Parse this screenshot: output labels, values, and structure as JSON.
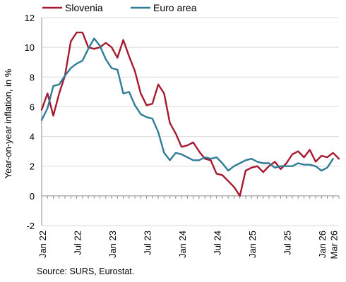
{
  "chart_data": {
    "type": "line",
    "ylabel": "Year-on-year inflation, in %",
    "ylim": [
      -2,
      12
    ],
    "yticks": [
      -2,
      0,
      2,
      4,
      6,
      8,
      10,
      12
    ],
    "x_start": "2022-01",
    "x_end": "2026-03",
    "xtick_labels": [
      {
        "date": "2022-01",
        "label": "Jan 22"
      },
      {
        "date": "2022-07",
        "label": "Jul 22"
      },
      {
        "date": "2023-01",
        "label": "Jan 23"
      },
      {
        "date": "2023-07",
        "label": "Jul 23"
      },
      {
        "date": "2024-01",
        "label": "Jan 24"
      },
      {
        "date": "2024-07",
        "label": "Jul 24"
      },
      {
        "date": "2025-01",
        "label": "Jan 25"
      },
      {
        "date": "2025-07",
        "label": "Jul 25"
      },
      {
        "date": "2026-01",
        "label": "Jan 26"
      },
      {
        "date": "2026-03",
        "label": "Mar 26"
      }
    ],
    "legend_position": "top",
    "grid": "horizontal",
    "series": [
      {
        "name": "Slovenia",
        "color": "#A6192E",
        "values": [
          [
            "2022-01",
            5.8
          ],
          [
            "2022-02",
            6.9
          ],
          [
            "2022-03",
            5.4
          ],
          [
            "2022-04",
            6.9
          ],
          [
            "2022-05",
            8.1
          ],
          [
            "2022-06",
            10.4
          ],
          [
            "2022-07",
            11.0
          ],
          [
            "2022-08",
            11.0
          ],
          [
            "2022-09",
            10.0
          ],
          [
            "2022-10",
            9.9
          ],
          [
            "2022-11",
            10.0
          ],
          [
            "2022-12",
            10.3
          ],
          [
            "2023-01",
            10.0
          ],
          [
            "2023-02",
            9.3
          ],
          [
            "2023-03",
            10.5
          ],
          [
            "2023-04",
            9.4
          ],
          [
            "2023-05",
            8.4
          ],
          [
            "2023-06",
            6.9
          ],
          [
            "2023-07",
            6.1
          ],
          [
            "2023-08",
            6.2
          ],
          [
            "2023-09",
            7.5
          ],
          [
            "2023-10",
            6.9
          ],
          [
            "2023-11",
            4.9
          ],
          [
            "2023-12",
            4.2
          ],
          [
            "2024-01",
            3.3
          ],
          [
            "2024-02",
            3.4
          ],
          [
            "2024-03",
            3.6
          ],
          [
            "2024-04",
            3.0
          ],
          [
            "2024-05",
            2.5
          ],
          [
            "2024-06",
            2.4
          ],
          [
            "2024-07",
            1.5
          ],
          [
            "2024-08",
            1.4
          ],
          [
            "2024-09",
            1.0
          ],
          [
            "2024-10",
            0.6
          ],
          [
            "2024-11",
            0.0
          ],
          [
            "2024-12",
            1.7
          ],
          [
            "2025-01",
            1.9
          ],
          [
            "2025-02",
            2.0
          ],
          [
            "2025-03",
            1.6
          ],
          [
            "2025-04",
            2.0
          ],
          [
            "2025-05",
            2.3
          ],
          [
            "2025-06",
            1.8
          ],
          [
            "2025-07",
            2.2
          ],
          [
            "2025-08",
            2.8
          ],
          [
            "2025-09",
            3.0
          ],
          [
            "2025-10",
            2.6
          ],
          [
            "2025-11",
            3.1
          ],
          [
            "2025-12",
            2.3
          ],
          [
            "2026-01",
            2.7
          ],
          [
            "2026-02",
            2.6
          ],
          [
            "2026-03",
            2.9
          ],
          [
            "2026-04",
            2.5
          ]
        ]
      },
      {
        "name": "Euro area",
        "color": "#2E7D96",
        "values": [
          [
            "2022-01",
            5.1
          ],
          [
            "2022-02",
            5.9
          ],
          [
            "2022-03",
            7.4
          ],
          [
            "2022-04",
            7.5
          ],
          [
            "2022-05",
            8.1
          ],
          [
            "2022-06",
            8.6
          ],
          [
            "2022-07",
            8.9
          ],
          [
            "2022-08",
            9.1
          ],
          [
            "2022-09",
            9.9
          ],
          [
            "2022-10",
            10.6
          ],
          [
            "2022-11",
            10.1
          ],
          [
            "2022-12",
            9.2
          ],
          [
            "2023-01",
            8.6
          ],
          [
            "2023-02",
            8.5
          ],
          [
            "2023-03",
            6.9
          ],
          [
            "2023-04",
            7.0
          ],
          [
            "2023-05",
            6.1
          ],
          [
            "2023-06",
            5.5
          ],
          [
            "2023-07",
            5.3
          ],
          [
            "2023-08",
            5.2
          ],
          [
            "2023-09",
            4.3
          ],
          [
            "2023-10",
            2.9
          ],
          [
            "2023-11",
            2.4
          ],
          [
            "2023-12",
            2.9
          ],
          [
            "2024-01",
            2.8
          ],
          [
            "2024-02",
            2.6
          ],
          [
            "2024-03",
            2.4
          ],
          [
            "2024-04",
            2.4
          ],
          [
            "2024-05",
            2.6
          ],
          [
            "2024-06",
            2.5
          ],
          [
            "2024-07",
            2.6
          ],
          [
            "2024-08",
            2.2
          ],
          [
            "2024-09",
            1.7
          ],
          [
            "2024-10",
            2.0
          ],
          [
            "2024-11",
            2.2
          ],
          [
            "2024-12",
            2.4
          ],
          [
            "2025-01",
            2.5
          ],
          [
            "2025-02",
            2.3
          ],
          [
            "2025-03",
            2.2
          ],
          [
            "2025-04",
            2.2
          ],
          [
            "2025-05",
            1.9
          ],
          [
            "2025-06",
            2.0
          ],
          [
            "2025-07",
            2.0
          ],
          [
            "2025-08",
            2.0
          ],
          [
            "2025-09",
            2.2
          ],
          [
            "2025-10",
            2.1
          ],
          [
            "2025-11",
            2.1
          ],
          [
            "2025-12",
            2.0
          ],
          [
            "2026-01",
            1.7
          ],
          [
            "2026-02",
            1.9
          ],
          [
            "2026-03",
            2.5
          ]
        ]
      }
    ]
  },
  "source_note": "Source: SURS, Eurostat."
}
